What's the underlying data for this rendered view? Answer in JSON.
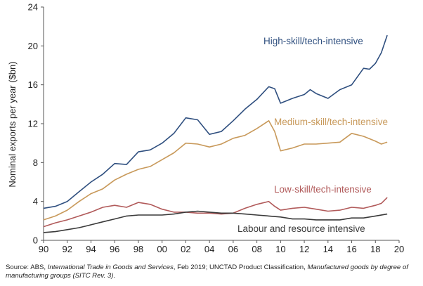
{
  "chart_data": {
    "type": "line",
    "title": "",
    "ylabel": "Nominal exports per year ($bn)",
    "xlabel": "",
    "xlim": [
      1990,
      2020
    ],
    "ylim": [
      0,
      24
    ],
    "x_ticks": [
      1990,
      1992,
      1994,
      1996,
      1998,
      2000,
      2002,
      2004,
      2006,
      2008,
      2010,
      2012,
      2014,
      2016,
      2018,
      2020
    ],
    "x_tick_labels": [
      "90",
      "92",
      "94",
      "96",
      "98",
      "00",
      "02",
      "04",
      "06",
      "08",
      "10",
      "12",
      "14",
      "16",
      "18",
      "20"
    ],
    "y_ticks": [
      0,
      4,
      8,
      12,
      16,
      20,
      24
    ],
    "y_tick_labels": [
      "0",
      "4",
      "8",
      "12",
      "16",
      "20",
      "24"
    ],
    "grid": false,
    "legend": "inline labels",
    "series": [
      {
        "name": "High-skill/tech-intensive",
        "color": "#2f4f7f",
        "points": [
          [
            1990,
            3.3
          ],
          [
            1991,
            3.5
          ],
          [
            1992,
            4.0
          ],
          [
            1993,
            5.0
          ],
          [
            1994,
            6.0
          ],
          [
            1995,
            6.8
          ],
          [
            1996,
            7.9
          ],
          [
            1997,
            7.8
          ],
          [
            1998,
            9.1
          ],
          [
            1999,
            9.3
          ],
          [
            2000,
            10.0
          ],
          [
            2001,
            11.0
          ],
          [
            2002,
            12.6
          ],
          [
            2003,
            12.4
          ],
          [
            2004,
            10.9
          ],
          [
            2005,
            11.2
          ],
          [
            2006,
            12.3
          ],
          [
            2007,
            13.5
          ],
          [
            2008,
            14.5
          ],
          [
            2009,
            15.8
          ],
          [
            2009.5,
            15.6
          ],
          [
            2010,
            14.1
          ],
          [
            2011,
            14.6
          ],
          [
            2012,
            15.0
          ],
          [
            2012.5,
            15.5
          ],
          [
            2013,
            15.1
          ],
          [
            2014,
            14.6
          ],
          [
            2015,
            15.5
          ],
          [
            2016,
            16.0
          ],
          [
            2017,
            17.7
          ],
          [
            2017.5,
            17.6
          ],
          [
            2018,
            18.2
          ],
          [
            2018.5,
            19.3
          ],
          [
            2019,
            21.1
          ]
        ]
      },
      {
        "name": "Medium-skill/tech-intensive",
        "color": "#c8995a",
        "points": [
          [
            1990,
            2.1
          ],
          [
            1991,
            2.5
          ],
          [
            1992,
            3.1
          ],
          [
            1993,
            4.0
          ],
          [
            1994,
            4.8
          ],
          [
            1995,
            5.3
          ],
          [
            1996,
            6.2
          ],
          [
            1997,
            6.8
          ],
          [
            1998,
            7.3
          ],
          [
            1999,
            7.6
          ],
          [
            2000,
            8.3
          ],
          [
            2001,
            9.0
          ],
          [
            2002,
            10.0
          ],
          [
            2003,
            9.9
          ],
          [
            2004,
            9.6
          ],
          [
            2005,
            9.9
          ],
          [
            2006,
            10.5
          ],
          [
            2007,
            10.8
          ],
          [
            2008,
            11.5
          ],
          [
            2009,
            12.3
          ],
          [
            2009.5,
            11.2
          ],
          [
            2010,
            9.2
          ],
          [
            2011,
            9.5
          ],
          [
            2012,
            9.9
          ],
          [
            2013,
            9.9
          ],
          [
            2014,
            10.0
          ],
          [
            2015,
            10.1
          ],
          [
            2016,
            11.0
          ],
          [
            2017,
            10.7
          ],
          [
            2018,
            10.2
          ],
          [
            2018.5,
            9.9
          ],
          [
            2019,
            10.1
          ]
        ]
      },
      {
        "name": "Low-skill/tech-intensive",
        "color": "#b15a5a",
        "points": [
          [
            1990,
            1.4
          ],
          [
            1991,
            1.8
          ],
          [
            1992,
            2.1
          ],
          [
            1993,
            2.5
          ],
          [
            1994,
            2.9
          ],
          [
            1995,
            3.4
          ],
          [
            1996,
            3.6
          ],
          [
            1997,
            3.4
          ],
          [
            1998,
            3.9
          ],
          [
            1999,
            3.7
          ],
          [
            2000,
            3.2
          ],
          [
            2001,
            2.9
          ],
          [
            2002,
            2.9
          ],
          [
            2003,
            2.8
          ],
          [
            2004,
            2.8
          ],
          [
            2005,
            2.7
          ],
          [
            2006,
            2.8
          ],
          [
            2007,
            3.3
          ],
          [
            2008,
            3.7
          ],
          [
            2009,
            4.0
          ],
          [
            2009.5,
            3.5
          ],
          [
            2010,
            3.1
          ],
          [
            2011,
            3.3
          ],
          [
            2012,
            3.4
          ],
          [
            2013,
            3.2
          ],
          [
            2014,
            3.0
          ],
          [
            2015,
            3.1
          ],
          [
            2016,
            3.4
          ],
          [
            2017,
            3.3
          ],
          [
            2018,
            3.6
          ],
          [
            2018.5,
            3.8
          ],
          [
            2019,
            4.4
          ]
        ]
      },
      {
        "name": "Labour and resource intensive",
        "color": "#3a3a3a",
        "points": [
          [
            1990,
            0.8
          ],
          [
            1991,
            0.9
          ],
          [
            1992,
            1.1
          ],
          [
            1993,
            1.3
          ],
          [
            1994,
            1.6
          ],
          [
            1995,
            1.9
          ],
          [
            1996,
            2.2
          ],
          [
            1997,
            2.5
          ],
          [
            1998,
            2.6
          ],
          [
            1999,
            2.6
          ],
          [
            2000,
            2.6
          ],
          [
            2001,
            2.7
          ],
          [
            2002,
            2.9
          ],
          [
            2003,
            3.0
          ],
          [
            2004,
            2.9
          ],
          [
            2005,
            2.8
          ],
          [
            2006,
            2.8
          ],
          [
            2007,
            2.7
          ],
          [
            2008,
            2.6
          ],
          [
            2009,
            2.5
          ],
          [
            2010,
            2.4
          ],
          [
            2011,
            2.2
          ],
          [
            2012,
            2.2
          ],
          [
            2013,
            2.1
          ],
          [
            2014,
            2.1
          ],
          [
            2015,
            2.1
          ],
          [
            2016,
            2.3
          ],
          [
            2017,
            2.3
          ],
          [
            2018,
            2.5
          ],
          [
            2019,
            2.7
          ]
        ]
      }
    ],
    "annotations": [
      {
        "text": "High-skill/tech-intensive",
        "series": 0
      },
      {
        "text": "Medium-skill/tech-intensive",
        "series": 1
      },
      {
        "text": "Low-skill/tech-intensive",
        "series": 2
      },
      {
        "text": "Labour and resource intensive",
        "series": 3
      }
    ]
  },
  "source": {
    "prefix": "Source: ABS, ",
    "title1": "International Trade in Goods and Services",
    "mid": ", Feb 2019; UNCTAD Product Classification, ",
    "title2": "Manufactured goods by degree of manufacturing groups (SITC Rev. 3)",
    "suffix": "."
  }
}
